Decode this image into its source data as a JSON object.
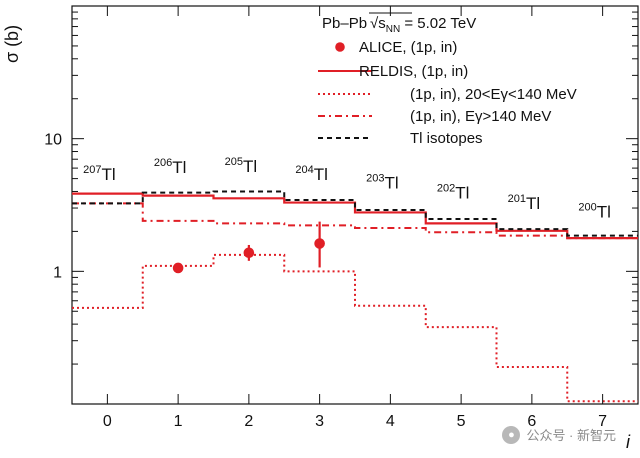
{
  "chart_data": {
    "type": "line",
    "title": "",
    "xlabel": "i",
    "ylabel": "σ (b)",
    "x_ticks": [
      "0",
      "1",
      "2",
      "3",
      "4",
      "5",
      "6",
      "7"
    ],
    "y_ticks": [
      "1",
      "10"
    ],
    "y_scale": "log",
    "xlim": [
      -0.5,
      7.5
    ],
    "ylim": [
      0.1,
      100
    ],
    "grid": false,
    "legend_position": "top-right",
    "legend_header": {
      "system": "Pb–Pb",
      "energy_label": "√s",
      "energy_subscript": "NN",
      "energy_value": " = 5.02 TeV"
    },
    "series": [
      {
        "key": "alice",
        "name": "ALICE,     (1p, in)",
        "legend_style": "point",
        "style": "point",
        "color": "#e01f26",
        "points": [
          {
            "x": 1,
            "y": 1.06,
            "err_low": 0,
            "err_high": 0
          },
          {
            "x": 2,
            "y": 1.38,
            "err_low": 0.18,
            "err_high": 0.2
          },
          {
            "x": 3,
            "y": 1.62,
            "err_low": 0.55,
            "err_high": 0.75
          }
        ]
      },
      {
        "key": "reldis",
        "name": "RELDIS, (1p, in)",
        "legend_style": "solid",
        "style": "step-solid",
        "color": "#e01f26",
        "step_values": [
          3.85,
          3.72,
          3.55,
          3.3,
          2.78,
          2.3,
          2.02,
          1.78
        ]
      },
      {
        "key": "low_energy",
        "name": "(1p, in), 20<Eγ<140 MeV",
        "legend_style": "dotted",
        "style": "step-dotted",
        "color": "#e01f26",
        "step_values": [
          0.53,
          1.1,
          1.33,
          1.0,
          0.55,
          0.38,
          0.19,
          0.105
        ]
      },
      {
        "key": "high_energy",
        "name": "(1p, in), Eγ>140 MeV",
        "legend_style": "dashdot",
        "style": "step-dashdot",
        "color": "#e01f26",
        "step_values": [
          3.25,
          2.4,
          2.3,
          2.22,
          2.12,
          1.97,
          1.86,
          1.78
        ]
      },
      {
        "key": "tl_isotopes",
        "name": "Tl isotopes",
        "legend_style": "dashed",
        "style": "step-dashed",
        "color": "#111111",
        "step_values": [
          3.25,
          3.92,
          4.0,
          3.45,
          2.9,
          2.48,
          2.08,
          1.86
        ]
      }
    ],
    "annotations": [
      {
        "mass": "207",
        "symbol": "Tl",
        "x": 0,
        "y": 4.9
      },
      {
        "mass": "206",
        "symbol": "Tl",
        "x": 1,
        "y": 5.5
      },
      {
        "mass": "205",
        "symbol": "Tl",
        "x": 2,
        "y": 5.6
      },
      {
        "mass": "204",
        "symbol": "Tl",
        "x": 3,
        "y": 4.9
      },
      {
        "mass": "203",
        "symbol": "Tl",
        "x": 4,
        "y": 4.2
      },
      {
        "mass": "202",
        "symbol": "Tl",
        "x": 5,
        "y": 3.55
      },
      {
        "mass": "201",
        "symbol": "Tl",
        "x": 6,
        "y": 2.95
      },
      {
        "mass": "200",
        "symbol": "Tl",
        "x": 7,
        "y": 2.55
      }
    ]
  },
  "watermark": {
    "text": "公众号 · 新智元",
    "icon": "wechat-icon"
  }
}
